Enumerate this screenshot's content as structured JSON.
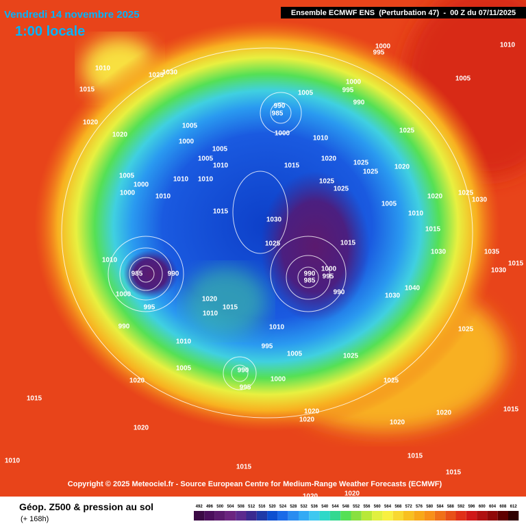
{
  "header": {
    "date": "Vendredi 14 novembre 2025",
    "time": "1:00 locale",
    "model": "Ensemble ECMWF ENS  (Perturbation 47)  -  00 Z du 07/11/2025"
  },
  "copyright": "Copyright © 2025 Meteociel.fr - Source European Centre for Medium-Range Weather Forecasts (ECMWF)",
  "footer": {
    "title": "Géop. Z500 & pression au sol",
    "subtitle": "(+ 168h)"
  },
  "colorbar": {
    "values": [
      492,
      496,
      500,
      504,
      508,
      512,
      516,
      520,
      524,
      528,
      532,
      536,
      540,
      544,
      548,
      552,
      556,
      560,
      564,
      568,
      572,
      576,
      580,
      584,
      588,
      592,
      596,
      600,
      604,
      608,
      612
    ],
    "colors": [
      "#3b0a45",
      "#4b0f5c",
      "#5b1a6e",
      "#6b2480",
      "#5c2a8e",
      "#3a2a90",
      "#1f3aa8",
      "#0d4fd0",
      "#1a6ae8",
      "#2a8cf0",
      "#33aaf5",
      "#3ec8f0",
      "#2fd8c8",
      "#33d890",
      "#55e055",
      "#88e040",
      "#b8e838",
      "#e0f040",
      "#f8f040",
      "#f8d830",
      "#f8c020",
      "#f8a818",
      "#f89018",
      "#f07018",
      "#e85018",
      "#e03018",
      "#d01818",
      "#b01010",
      "#900808",
      "#600000",
      "#300000"
    ]
  },
  "isobar_labels": [
    1010,
    1025,
    1030,
    1015,
    1020,
    1020,
    1005,
    1000,
    1005,
    1005,
    1010,
    1010,
    1010,
    1005,
    1000,
    1000,
    1010,
    1015,
    1030,
    1025,
    1010,
    985,
    990,
    1000,
    995,
    990,
    1020,
    1010,
    1015,
    1010,
    1005,
    1020,
    1015,
    1020,
    1010,
    1015,
    990,
    985,
    1000,
    1005,
    1000,
    995,
    990,
    1010,
    1015,
    1020,
    1025,
    1025,
    1015,
    990,
    985,
    1000,
    995,
    990,
    1010,
    995,
    1005,
    1000,
    995,
    990,
    1025,
    1020,
    1020,
    1020,
    1015,
    1015,
    1015,
    1020,
    1025,
    1030,
    1040,
    1025,
    1030,
    1005,
    1010,
    1020,
    1025,
    1030,
    1005,
    1010,
    1000,
    995,
    1025,
    1020,
    1020,
    1020,
    1035,
    1015,
    1015,
    1030,
    1025,
    1025
  ]
}
